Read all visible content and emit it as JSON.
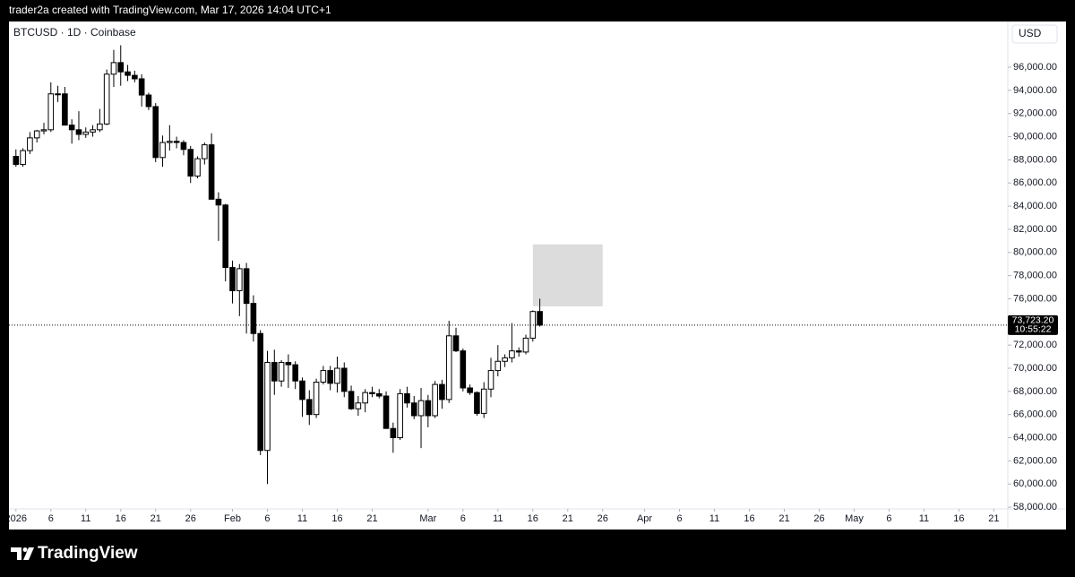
{
  "header": "trader2a created with TradingView.com, Mar 17, 2026 14:04 UTC+1",
  "brand": "TradingView",
  "chart_data": {
    "type": "candlestick",
    "title": "BTCUSD · 1D · Coinbase",
    "currency": "USD",
    "up_color": "#ffffff",
    "down_color": "#000000",
    "outline_color": "#000000",
    "x": [
      "2026-01-01",
      "2026-01-02",
      "2026-01-03",
      "2026-01-04",
      "2026-01-05",
      "2026-01-06",
      "2026-01-07",
      "2026-01-08",
      "2026-01-09",
      "2026-01-10",
      "2026-01-11",
      "2026-01-12",
      "2026-01-13",
      "2026-01-14",
      "2026-01-15",
      "2026-01-16",
      "2026-01-17",
      "2026-01-18",
      "2026-01-19",
      "2026-01-20",
      "2026-01-21",
      "2026-01-22",
      "2026-01-23",
      "2026-01-24",
      "2026-01-25",
      "2026-01-26",
      "2026-01-27",
      "2026-01-28",
      "2026-01-29",
      "2026-01-30",
      "2026-01-31",
      "2026-02-01",
      "2026-02-02",
      "2026-02-03",
      "2026-02-04",
      "2026-02-05",
      "2026-02-06",
      "2026-02-07",
      "2026-02-08",
      "2026-02-09",
      "2026-02-10",
      "2026-02-11",
      "2026-02-12",
      "2026-02-13",
      "2026-02-14",
      "2026-02-15",
      "2026-02-16",
      "2026-02-17",
      "2026-02-18",
      "2026-02-19",
      "2026-02-20",
      "2026-02-21",
      "2026-02-22",
      "2026-02-23",
      "2026-02-24",
      "2026-02-25",
      "2026-02-26",
      "2026-02-27",
      "2026-02-28",
      "2026-03-01",
      "2026-03-02",
      "2026-03-03",
      "2026-03-04",
      "2026-03-05",
      "2026-03-06",
      "2026-03-07",
      "2026-03-08",
      "2026-03-09",
      "2026-03-10",
      "2026-03-11",
      "2026-03-12",
      "2026-03-13",
      "2026-03-14",
      "2026-03-15",
      "2026-03-16",
      "2026-03-17"
    ],
    "open": [
      88300,
      87600,
      88800,
      89900,
      90500,
      90600,
      93700,
      93700,
      91000,
      90600,
      90200,
      90400,
      90600,
      91100,
      95400,
      96400,
      95600,
      95300,
      95000,
      93600,
      92600,
      88200,
      89500,
      89600,
      89500,
      88900,
      86600,
      88100,
      89300,
      84600,
      84100,
      78700,
      76700,
      78600,
      75600,
      73000,
      62900,
      70500,
      68900,
      70500,
      70300,
      68900,
      67300,
      66000,
      68800,
      69800,
      68700,
      70000,
      68000,
      66500,
      67000,
      67900,
      67800,
      67600,
      64800,
      64000,
      67800,
      67000,
      65900,
      67200,
      65900,
      68600,
      67300,
      72800,
      71500,
      68300,
      67900,
      66100,
      68200,
      69800,
      70600,
      70900,
      71500,
      71400,
      72600,
      74900
    ],
    "high": [
      88900,
      89000,
      90400,
      90600,
      91200,
      94700,
      94400,
      94300,
      91500,
      92200,
      90800,
      91000,
      92400,
      95800,
      97500,
      97900,
      96200,
      95700,
      95400,
      93800,
      92900,
      90100,
      91000,
      90000,
      89700,
      89200,
      88300,
      89500,
      90300,
      85200,
      84200,
      79300,
      79000,
      79100,
      76300,
      73300,
      71500,
      71600,
      70700,
      71200,
      70600,
      69200,
      68100,
      69100,
      70200,
      70200,
      71000,
      70500,
      68500,
      67600,
      68200,
      68400,
      68200,
      68000,
      65300,
      68200,
      68400,
      67600,
      68300,
      67700,
      68900,
      69000,
      74100,
      73500,
      71700,
      68600,
      68000,
      68800,
      70900,
      72000,
      71200,
      73900,
      71800,
      72900,
      75000,
      76000
    ],
    "low": [
      87400,
      87400,
      88500,
      89500,
      90200,
      90400,
      93000,
      91000,
      89400,
      89700,
      89900,
      90000,
      90400,
      91000,
      94300,
      94400,
      94800,
      94700,
      92600,
      92300,
      87800,
      87400,
      88800,
      89000,
      88400,
      86000,
      86400,
      87600,
      84600,
      81000,
      77500,
      75600,
      74500,
      73000,
      72300,
      62500,
      60000,
      67700,
      68400,
      68300,
      68200,
      65800,
      65100,
      65700,
      68600,
      68100,
      67900,
      67500,
      66400,
      65900,
      66200,
      67500,
      67400,
      64800,
      62700,
      63800,
      66600,
      65600,
      63100,
      64900,
      65700,
      66500,
      67000,
      71400,
      68000,
      67700,
      65900,
      65700,
      67500,
      69300,
      70100,
      70500,
      71000,
      71200,
      72300,
      73600
    ],
    "close": [
      87600,
      88800,
      89900,
      90500,
      90600,
      93700,
      93700,
      91000,
      90600,
      90200,
      90400,
      90600,
      91100,
      95400,
      96400,
      95600,
      95300,
      95000,
      93600,
      92600,
      88200,
      89500,
      89600,
      89500,
      88900,
      86600,
      88100,
      89300,
      84600,
      84100,
      78700,
      76700,
      78600,
      75600,
      73000,
      62900,
      70500,
      68900,
      70500,
      70300,
      68900,
      67300,
      66000,
      68800,
      69800,
      68700,
      70000,
      68000,
      66500,
      67000,
      67900,
      67800,
      67600,
      64800,
      64000,
      67800,
      67000,
      65900,
      67200,
      65900,
      68600,
      67300,
      72800,
      71500,
      68300,
      67900,
      66100,
      68200,
      69800,
      70600,
      70900,
      71500,
      71400,
      72600,
      74900,
      73723.2
    ],
    "last_price_label": "73,723.20",
    "countdown": "10:55:22",
    "annotations": [
      {
        "type": "rectangle",
        "x": [
          "2026-03-16",
          "2026-03-26"
        ],
        "y": [
          75350,
          80700
        ],
        "color": "#dcdcdc"
      }
    ],
    "xlim": [
      "2025-12-31",
      "2026-05-23"
    ],
    "xticks": [
      {
        "value": "2026-01-01",
        "label": "2026"
      },
      {
        "value": "2026-01-06",
        "label": "6"
      },
      {
        "value": "2026-01-11",
        "label": "11"
      },
      {
        "value": "2026-01-16",
        "label": "16"
      },
      {
        "value": "2026-01-21",
        "label": "21"
      },
      {
        "value": "2026-01-26",
        "label": "26"
      },
      {
        "value": "2026-02-01",
        "label": "Feb"
      },
      {
        "value": "2026-02-06",
        "label": "6"
      },
      {
        "value": "2026-02-11",
        "label": "11"
      },
      {
        "value": "2026-02-16",
        "label": "16"
      },
      {
        "value": "2026-02-21",
        "label": "21"
      },
      {
        "value": "2026-03-01",
        "label": "Mar"
      },
      {
        "value": "2026-03-06",
        "label": "6"
      },
      {
        "value": "2026-03-11",
        "label": "11"
      },
      {
        "value": "2026-03-16",
        "label": "16"
      },
      {
        "value": "2026-03-21",
        "label": "21"
      },
      {
        "value": "2026-03-26",
        "label": "26"
      },
      {
        "value": "2026-04-01",
        "label": "Apr"
      },
      {
        "value": "2026-04-06",
        "label": "6"
      },
      {
        "value": "2026-04-11",
        "label": "11"
      },
      {
        "value": "2026-04-16",
        "label": "16"
      },
      {
        "value": "2026-04-21",
        "label": "21"
      },
      {
        "value": "2026-04-26",
        "label": "26"
      },
      {
        "value": "2026-05-01",
        "label": "May"
      },
      {
        "value": "2026-05-06",
        "label": "6"
      },
      {
        "value": "2026-05-11",
        "label": "11"
      },
      {
        "value": "2026-05-16",
        "label": "16"
      },
      {
        "value": "2026-05-21",
        "label": "21"
      }
    ],
    "ylim": [
      57850,
      99950
    ],
    "yticks": [
      {
        "value": 58000,
        "label": "58,000.00"
      },
      {
        "value": 60000,
        "label": "60,000.00"
      },
      {
        "value": 62000,
        "label": "62,000.00"
      },
      {
        "value": 64000,
        "label": "64,000.00"
      },
      {
        "value": 66000,
        "label": "66,000.00"
      },
      {
        "value": 68000,
        "label": "68,000.00"
      },
      {
        "value": 70000,
        "label": "70,000.00"
      },
      {
        "value": 72000,
        "label": "72,000.00"
      },
      {
        "value": 74000,
        "label": "74,000.00"
      },
      {
        "value": 76000,
        "label": "76,000.00"
      },
      {
        "value": 78000,
        "label": "78,000.00"
      },
      {
        "value": 80000,
        "label": "80,000.00"
      },
      {
        "value": 82000,
        "label": "82,000.00"
      },
      {
        "value": 84000,
        "label": "84,000.00"
      },
      {
        "value": 86000,
        "label": "86,000.00"
      },
      {
        "value": 88000,
        "label": "88,000.00"
      },
      {
        "value": 90000,
        "label": "90,000.00"
      },
      {
        "value": 92000,
        "label": "92,000.00"
      },
      {
        "value": 94000,
        "label": "94,000.00"
      },
      {
        "value": 96000,
        "label": "96,000.00"
      }
    ],
    "grid": false
  }
}
